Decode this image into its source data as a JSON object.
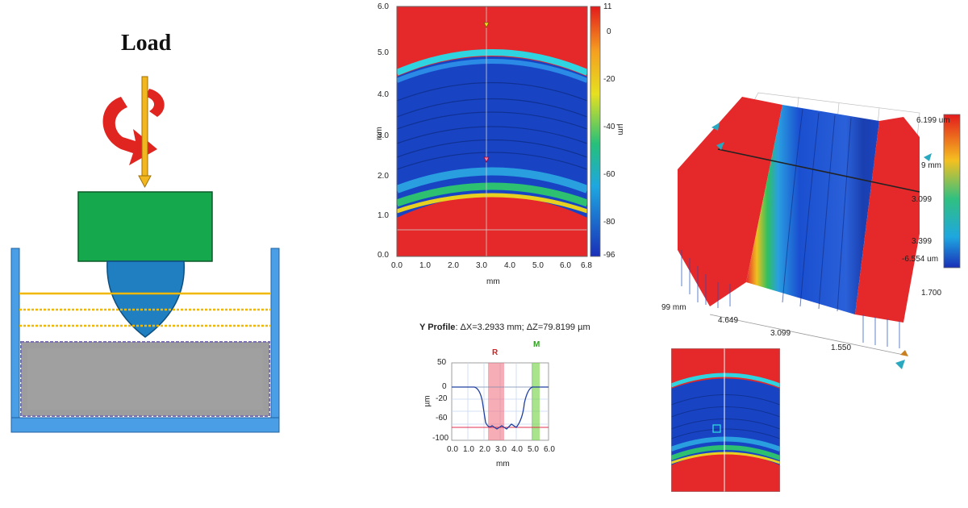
{
  "schematic": {
    "load_label": "Load"
  },
  "height_map": {
    "y_label": "mm",
    "x_label": "mm",
    "y_ticks": [
      "6.0",
      "5.0",
      "4.0",
      "3.0",
      "2.0",
      "1.0",
      "0.0"
    ],
    "x_ticks": [
      "0.0",
      "1.0",
      "2.0",
      "3.0",
      "4.0",
      "5.0",
      "6.0",
      "6.8"
    ],
    "colorbar_label": "µm",
    "colorbar_ticks": [
      "11",
      "0",
      "-20",
      "-40",
      "-60",
      "-80",
      "-96"
    ]
  },
  "profile": {
    "title": "Y Profile",
    "measurement": ": ΔX=3.2933 mm; ΔZ=79.8199 µm",
    "marker_r": "R",
    "marker_m": "M",
    "y_label": "µm",
    "x_label": "mm",
    "y_ticks": [
      "50",
      "0",
      "-20",
      "-60",
      "-100"
    ],
    "x_ticks": [
      "0.0",
      "1.0",
      "2.0",
      "3.0",
      "4.0",
      "5.0",
      "6.0"
    ]
  },
  "view3d": {
    "right_labels": [
      "6.199 um",
      "9 mm",
      "3.099",
      "3.399",
      "-6.554 um",
      "1.700"
    ],
    "axis_ticks": [
      "99 mm",
      "4.649",
      "3.099",
      "1.550"
    ]
  },
  "colors": {
    "red": "#e5282a",
    "blue": "#1d46c6",
    "green": "#14a050"
  }
}
